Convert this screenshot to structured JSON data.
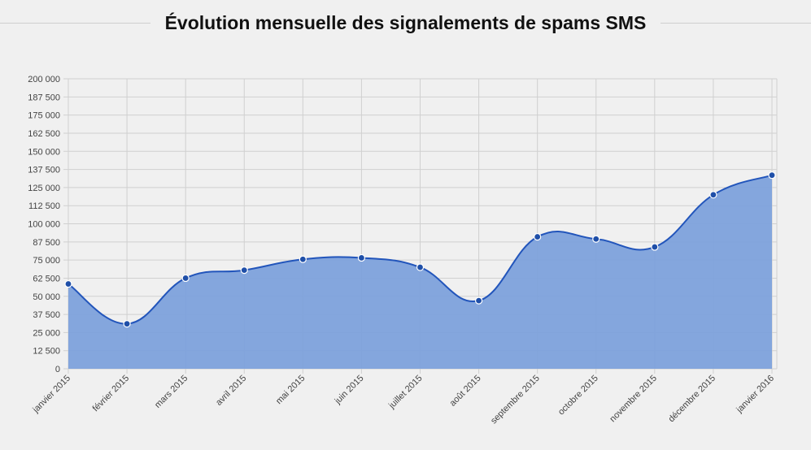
{
  "chart_data": {
    "type": "area",
    "title": "Évolution mensuelle des signalements de spams SMS",
    "categories": [
      "janvier 2015",
      "février 2015",
      "mars 2015",
      "avril 2015",
      "mai 2015",
      "juin 2015",
      "juillet 2015",
      "août 2015",
      "septembre 2015",
      "octobre 2015",
      "novembre 2015",
      "décembre 2015",
      "janvier 2016"
    ],
    "series": [
      {
        "values": [
          58500,
          31000,
          62500,
          68000,
          75500,
          76500,
          70000,
          47000,
          91000,
          89500,
          84000,
          120000,
          133500
        ]
      }
    ],
    "ylim": [
      0,
      200000
    ],
    "yticks": [
      0,
      12500,
      25000,
      37500,
      50000,
      62500,
      75000,
      87500,
      100000,
      112500,
      125000,
      137500,
      150000,
      162500,
      175000,
      187500,
      200000
    ],
    "ytick_labels": [
      "0",
      "12 500",
      "25 000",
      "37 500",
      "50 000",
      "62 500",
      "75 000",
      "87 500",
      "100 000",
      "112 500",
      "125 000",
      "137 500",
      "150 000",
      "162 500",
      "175 000",
      "187 500",
      "200 000"
    ],
    "grid": true,
    "colors": {
      "line": "#2255bb",
      "fill": "#7b9fdb",
      "point": "#1f4fa8",
      "grid": "#d0d0d0"
    }
  }
}
